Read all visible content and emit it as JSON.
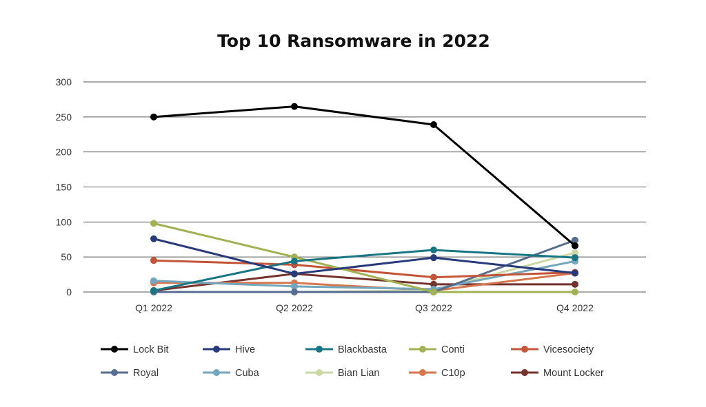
{
  "chart_data": {
    "type": "line",
    "title": "Top 10 Ransomware in 2022",
    "xlabel": "",
    "ylabel": "",
    "categories": [
      "Q1 2022",
      "Q2 2022",
      "Q3 2022",
      "Q4 2022"
    ],
    "ylim": [
      0,
      300
    ],
    "yticks": [
      "0",
      "50",
      "100",
      "150",
      "200",
      "250",
      "300"
    ],
    "grid": true,
    "legend_position": "bottom",
    "series": [
      {
        "name": "Lock Bit",
        "color": "#000000",
        "values": [
          250,
          265,
          239,
          66
        ]
      },
      {
        "name": "Hive",
        "color": "#273a7a",
        "values": [
          76,
          26,
          49,
          27
        ]
      },
      {
        "name": "Blackbasta",
        "color": "#177584",
        "values": [
          2,
          44,
          60,
          49
        ]
      },
      {
        "name": "Conti",
        "color": "#a1b254",
        "values": [
          98,
          50,
          0,
          0
        ]
      },
      {
        "name": "Vicesociety",
        "color": "#c45438",
        "values": [
          45,
          39,
          21,
          28
        ]
      },
      {
        "name": "Royal",
        "color": "#566d8f",
        "values": [
          0,
          0,
          0,
          74
        ]
      },
      {
        "name": "Cuba",
        "color": "#74a6bd",
        "values": [
          16,
          8,
          4,
          44
        ]
      },
      {
        "name": "Bian Lian",
        "color": "#cad8a4",
        "values": [
          0,
          0,
          2,
          56
        ]
      },
      {
        "name": "C10p",
        "color": "#d7764e",
        "values": [
          13,
          13,
          2,
          27
        ]
      },
      {
        "name": "Mount Locker",
        "color": "#74322b",
        "values": [
          2,
          26,
          11,
          11
        ]
      }
    ]
  }
}
